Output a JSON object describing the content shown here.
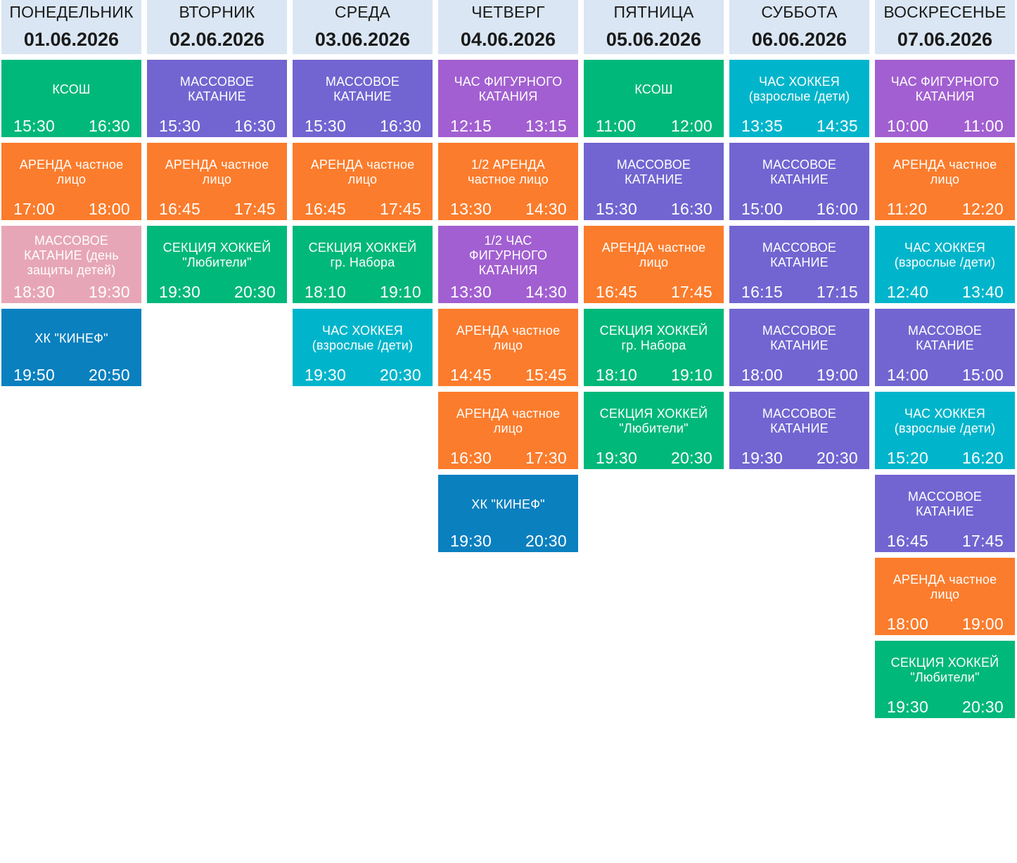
{
  "colors": {
    "header_bg": "#dae6f3",
    "green": "#00b87a",
    "purple": "#7265d1",
    "violet": "#a25fd1",
    "orange": "#fb7c2c",
    "cyan": "#00b5cb",
    "pink": "#e7a6b8",
    "blue": "#0a80bf"
  },
  "days": [
    {
      "name": "ПОНЕДЕЛЬНИК",
      "date": "01.06.2026",
      "sessions": [
        {
          "title": "КСОШ",
          "start": "15:30",
          "end": "16:30",
          "color": "green"
        },
        {
          "title": "АРЕНДА частное\nлицо",
          "start": "17:00",
          "end": "18:00",
          "color": "orange"
        },
        {
          "title": "МАССОВОЕ\nКАТАНИЕ (день\nзащиты детей)",
          "start": "18:30",
          "end": "19:30",
          "color": "pink"
        },
        {
          "title": "ХК \"КИНЕФ\"",
          "start": "19:50",
          "end": "20:50",
          "color": "blue"
        }
      ]
    },
    {
      "name": "ВТОРНИК",
      "date": "02.06.2026",
      "sessions": [
        {
          "title": "МАССОВОЕ\nКАТАНИЕ",
          "start": "15:30",
          "end": "16:30",
          "color": "purple"
        },
        {
          "title": "АРЕНДА частное\nлицо",
          "start": "16:45",
          "end": "17:45",
          "color": "orange"
        },
        {
          "title": "СЕКЦИЯ ХОККЕЙ\n\"Любители\"",
          "start": "19:30",
          "end": "20:30",
          "color": "green"
        }
      ]
    },
    {
      "name": "СРЕДА",
      "date": "03.06.2026",
      "sessions": [
        {
          "title": "МАССОВОЕ\nКАТАНИЕ",
          "start": "15:30",
          "end": "16:30",
          "color": "purple"
        },
        {
          "title": "АРЕНДА частное\nлицо",
          "start": "16:45",
          "end": "17:45",
          "color": "orange"
        },
        {
          "title": "СЕКЦИЯ ХОККЕЙ\nгр. Набора",
          "start": "18:10",
          "end": "19:10",
          "color": "green"
        },
        {
          "title": "ЧАС ХОККЕЯ\n(взрослые /дети)",
          "start": "19:30",
          "end": "20:30",
          "color": "cyan"
        }
      ]
    },
    {
      "name": "ЧЕТВЕРГ",
      "date": "04.06.2026",
      "sessions": [
        {
          "title": "ЧАС ФИГУРНОГО\nКАТАНИЯ",
          "start": "12:15",
          "end": "13:15",
          "color": "violet"
        },
        {
          "title": "1/2 АРЕНДА\nчастное лицо",
          "start": "13:30",
          "end": "14:30",
          "color": "orange"
        },
        {
          "title": "1/2 ЧАС\nФИГУРНОГО\nКАТАНИЯ",
          "start": "13:30",
          "end": "14:30",
          "color": "violet"
        },
        {
          "title": "АРЕНДА частное\nлицо",
          "start": "14:45",
          "end": "15:45",
          "color": "orange"
        },
        {
          "title": "АРЕНДА частное\nлицо",
          "start": "16:30",
          "end": "17:30",
          "color": "orange"
        },
        {
          "title": "ХК \"КИНЕФ\"",
          "start": "19:30",
          "end": "20:30",
          "color": "blue"
        }
      ]
    },
    {
      "name": "ПЯТНИЦА",
      "date": "05.06.2026",
      "sessions": [
        {
          "title": "КСОШ",
          "start": "11:00",
          "end": "12:00",
          "color": "green"
        },
        {
          "title": "МАССОВОЕ\nКАТАНИЕ",
          "start": "15:30",
          "end": "16:30",
          "color": "purple"
        },
        {
          "title": "АРЕНДА частное\nлицо",
          "start": "16:45",
          "end": "17:45",
          "color": "orange"
        },
        {
          "title": "СЕКЦИЯ ХОККЕЙ\nгр. Набора",
          "start": "18:10",
          "end": "19:10",
          "color": "green"
        },
        {
          "title": "СЕКЦИЯ ХОККЕЙ\n\"Любители\"",
          "start": "19:30",
          "end": "20:30",
          "color": "green"
        }
      ]
    },
    {
      "name": "СУББОТА",
      "date": "06.06.2026",
      "sessions": [
        {
          "title": "ЧАС ХОККЕЯ\n(взрослые /дети)",
          "start": "13:35",
          "end": "14:35",
          "color": "cyan"
        },
        {
          "title": "МАССОВОЕ\nКАТАНИЕ",
          "start": "15:00",
          "end": "16:00",
          "color": "purple"
        },
        {
          "title": "МАССОВОЕ\nКАТАНИЕ",
          "start": "16:15",
          "end": "17:15",
          "color": "purple"
        },
        {
          "title": "МАССОВОЕ\nКАТАНИЕ",
          "start": "18:00",
          "end": "19:00",
          "color": "purple"
        },
        {
          "title": "МАССОВОЕ\nКАТАНИЕ",
          "start": "19:30",
          "end": "20:30",
          "color": "purple"
        }
      ]
    },
    {
      "name": "ВОСКРЕСЕНЬЕ",
      "date": "07.06.2026",
      "sessions": [
        {
          "title": "ЧАС ФИГУРНОГО\nКАТАНИЯ",
          "start": "10:00",
          "end": "11:00",
          "color": "violet"
        },
        {
          "title": "АРЕНДА частное\nлицо",
          "start": "11:20",
          "end": "12:20",
          "color": "orange"
        },
        {
          "title": "ЧАС ХОККЕЯ\n(взрослые /дети)",
          "start": "12:40",
          "end": "13:40",
          "color": "cyan"
        },
        {
          "title": "МАССОВОЕ\nКАТАНИЕ",
          "start": "14:00",
          "end": "15:00",
          "color": "purple"
        },
        {
          "title": "ЧАС ХОККЕЯ\n(взрослые /дети)",
          "start": "15:20",
          "end": "16:20",
          "color": "cyan"
        },
        {
          "title": "МАССОВОЕ\nКАТАНИЕ",
          "start": "16:45",
          "end": "17:45",
          "color": "purple"
        },
        {
          "title": "АРЕНДА частное\nлицо",
          "start": "18:00",
          "end": "19:00",
          "color": "orange"
        },
        {
          "title": "СЕКЦИЯ ХОККЕЙ\n\"Любители\"",
          "start": "19:30",
          "end": "20:30",
          "color": "green"
        }
      ]
    }
  ]
}
